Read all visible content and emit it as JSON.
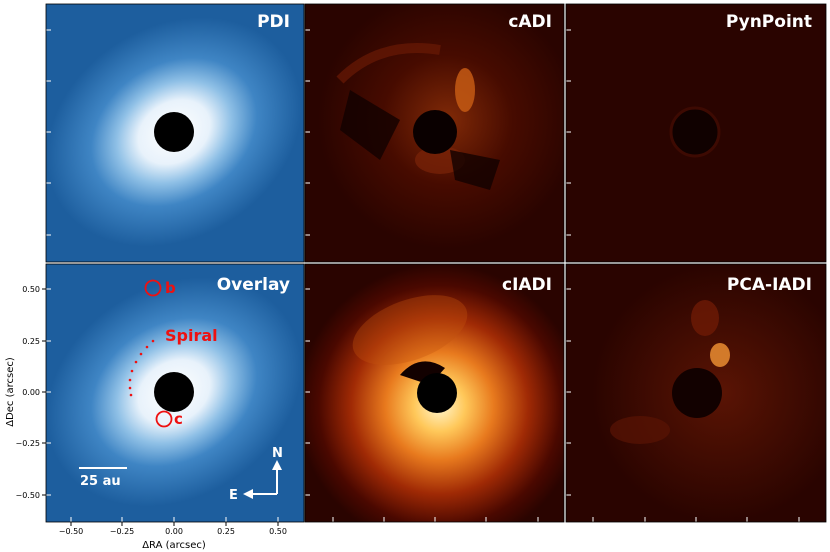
{
  "panels": {
    "pdi": "PDI",
    "cadi": "cADI",
    "pynpoint": "PynPoint",
    "overlay": "Overlay",
    "cladi": "cIADI",
    "pcaladi": "PCA-IADI"
  },
  "annotations": {
    "planet_b": "b",
    "planet_c": "c",
    "spiral": "Spiral",
    "scalebar": "25 au",
    "north": "N",
    "east": "E"
  },
  "axes": {
    "xlabel": "ΔRA (arcsec)",
    "ylabel": "ΔDec (arcsec)",
    "xticks": [
      "−0.50",
      "−0.25",
      "0.00",
      "0.25",
      "0.50"
    ],
    "yticks": [
      "0.50",
      "0.25",
      "0.00",
      "−0.25",
      "−0.50"
    ]
  },
  "colors": {
    "blue_map": "#2a6fb0",
    "red_map": "#2a0400",
    "annotation": "#ee1111"
  }
}
